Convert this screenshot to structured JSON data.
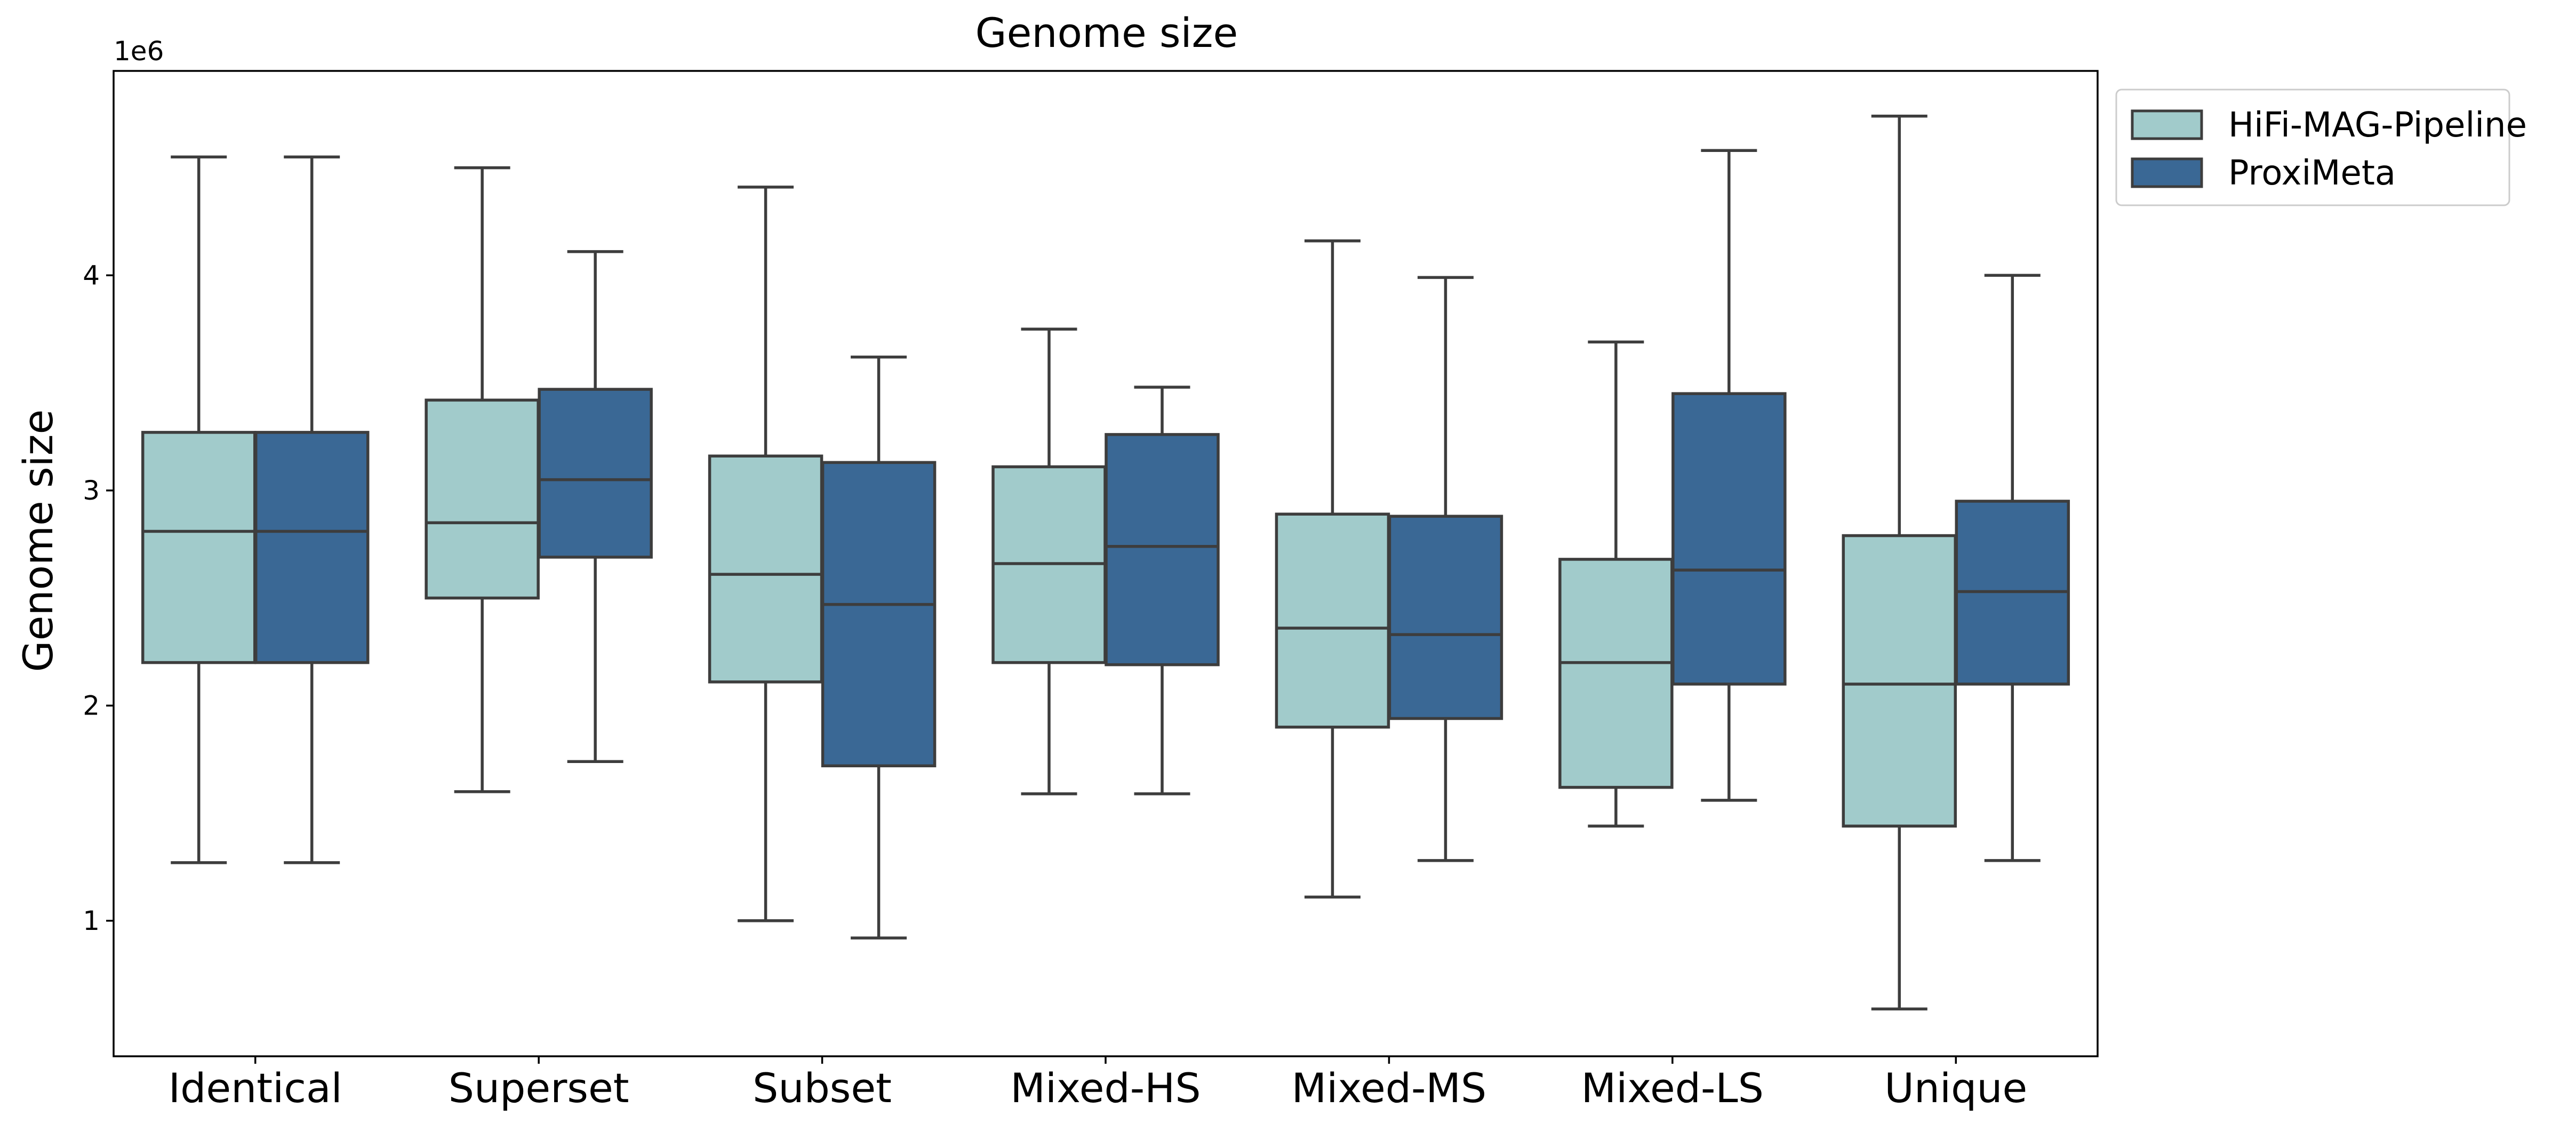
{
  "chart_data": {
    "type": "box",
    "title": "Genome size",
    "xlabel": "",
    "ylabel": "Genome size",
    "y_offset_label": "1e6",
    "y_unit_multiplier": 1000000,
    "ylim": [
      0.37,
      4.95
    ],
    "yticks": [
      1,
      2,
      3,
      4
    ],
    "grid": false,
    "legend_position": "outside top-right",
    "categories": [
      "Identical",
      "Superset",
      "Subset",
      "Mixed-HS",
      "Mixed-MS",
      "Mixed-LS",
      "Unique"
    ],
    "series": [
      {
        "name": "HiFi-MAG-Pipeline",
        "color": "#a1cbcb",
        "boxes": [
          {
            "whislo": 1.27,
            "q1": 2.2,
            "med": 2.81,
            "q3": 3.27,
            "whishi": 4.55
          },
          {
            "whislo": 1.6,
            "q1": 2.5,
            "med": 2.85,
            "q3": 3.42,
            "whishi": 4.5
          },
          {
            "whislo": 1.0,
            "q1": 2.11,
            "med": 2.61,
            "q3": 3.16,
            "whishi": 4.41
          },
          {
            "whislo": 1.59,
            "q1": 2.2,
            "med": 2.66,
            "q3": 3.11,
            "whishi": 3.75
          },
          {
            "whislo": 1.11,
            "q1": 1.9,
            "med": 2.36,
            "q3": 2.89,
            "whishi": 4.16
          },
          {
            "whislo": 1.44,
            "q1": 1.62,
            "med": 2.2,
            "q3": 2.68,
            "whishi": 3.69
          },
          {
            "whislo": 0.59,
            "q1": 1.44,
            "med": 2.1,
            "q3": 2.79,
            "whishi": 4.74
          }
        ]
      },
      {
        "name": "ProxiMeta",
        "color": "#3a6895",
        "boxes": [
          {
            "whislo": 1.27,
            "q1": 2.2,
            "med": 2.81,
            "q3": 3.27,
            "whishi": 4.55
          },
          {
            "whislo": 1.74,
            "q1": 2.69,
            "med": 3.05,
            "q3": 3.47,
            "whishi": 4.11
          },
          {
            "whislo": 0.92,
            "q1": 1.72,
            "med": 2.47,
            "q3": 3.13,
            "whishi": 3.62
          },
          {
            "whislo": 1.59,
            "q1": 2.19,
            "med": 2.74,
            "q3": 3.26,
            "whishi": 3.48
          },
          {
            "whislo": 1.28,
            "q1": 1.94,
            "med": 2.33,
            "q3": 2.88,
            "whishi": 3.99
          },
          {
            "whislo": 1.56,
            "q1": 2.1,
            "med": 2.63,
            "q3": 3.45,
            "whishi": 4.58
          },
          {
            "whislo": 1.28,
            "q1": 2.1,
            "med": 2.53,
            "q3": 2.95,
            "whishi": 4.0
          }
        ]
      }
    ]
  }
}
